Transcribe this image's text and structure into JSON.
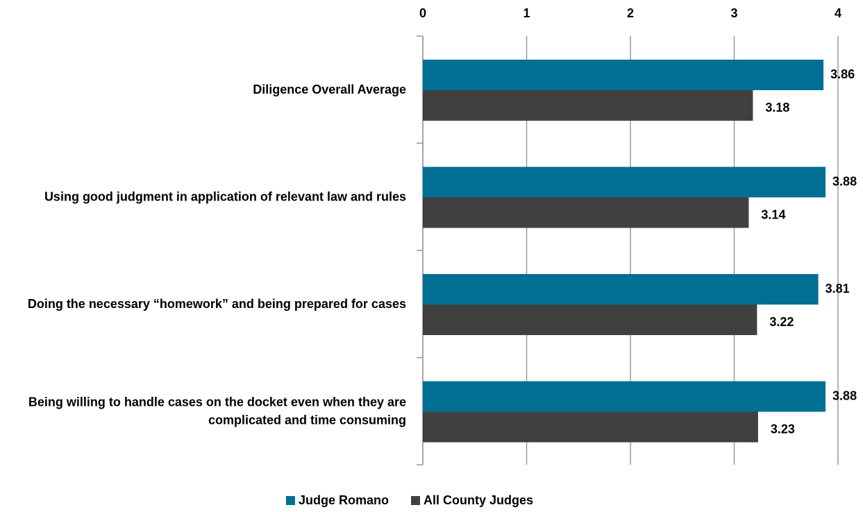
{
  "chart_data": {
    "type": "bar",
    "orientation": "horizontal",
    "categories": [
      "Diligence Overall Average",
      "Using good judgment in application of relevant law and rules",
      "Doing the necessary “homework” and being prepared for cases",
      "Being willing to handle cases on the docket even when they are complicated and time consuming"
    ],
    "series": [
      {
        "name": "Judge Romano",
        "color": "#006f94",
        "values": [
          3.86,
          3.88,
          3.81,
          3.88
        ]
      },
      {
        "name": "All County Judges",
        "color": "#404040",
        "values": [
          3.18,
          3.14,
          3.22,
          3.23
        ]
      }
    ],
    "xlim": [
      0,
      4
    ],
    "xticks": [
      0,
      1,
      2,
      3,
      4
    ],
    "grid": true,
    "legend": "bottom"
  }
}
